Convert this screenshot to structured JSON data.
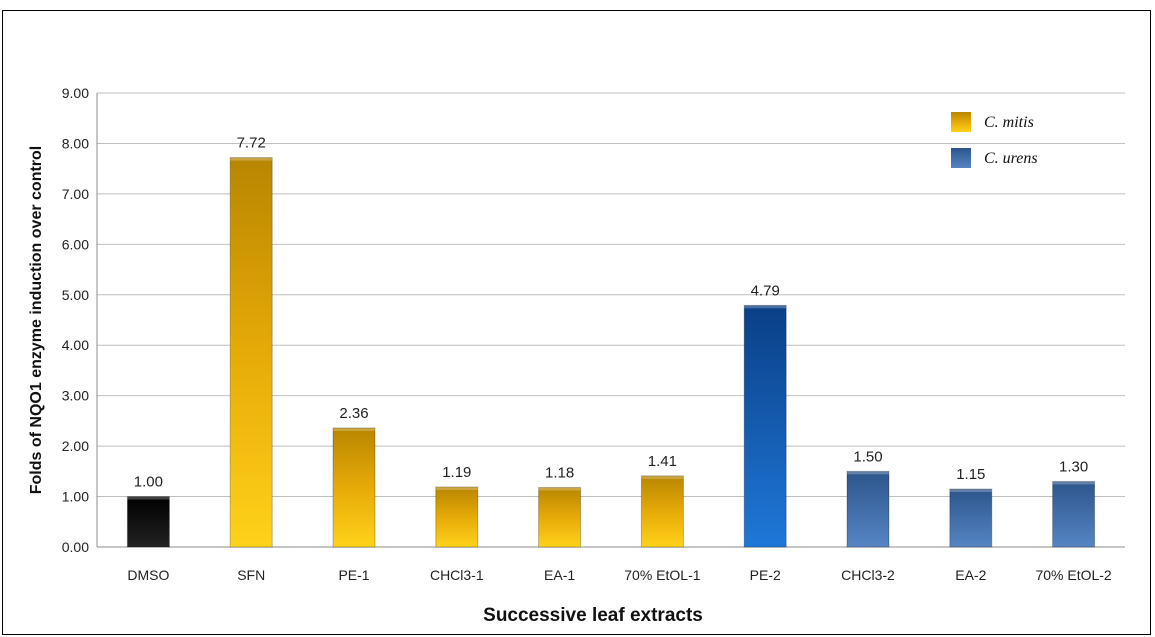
{
  "chart_data": {
    "type": "bar",
    "xlabel": "Successive leaf extracts",
    "ylabel": "Folds of NQO1 enzyme induction over control",
    "ylim": [
      0,
      9
    ],
    "yticks": [
      "0.00",
      "1.00",
      "2.00",
      "3.00",
      "4.00",
      "5.00",
      "6.00",
      "7.00",
      "8.00",
      "9.00"
    ],
    "grid": true,
    "legend_position": "top-right",
    "categories": [
      "DMSO",
      "SFN",
      "PE-1",
      "CHCl3-1",
      "EA-1",
      "70% EtOL-1",
      "PE-2",
      "CHCl3-2",
      "EA-2",
      "70% EtOL-2"
    ],
    "values": [
      1.0,
      7.72,
      2.36,
      1.19,
      1.18,
      1.41,
      4.79,
      1.5,
      1.15,
      1.3
    ],
    "value_labels": [
      "1.00",
      "7.72",
      "2.36",
      "1.19",
      "1.18",
      "1.41",
      "4.79",
      "1.50",
      "1.15",
      "1.30"
    ],
    "bar_groups": [
      "control",
      "mitis",
      "mitis",
      "mitis",
      "mitis",
      "mitis",
      "urens",
      "urens",
      "urens",
      "urens"
    ],
    "legend": [
      {
        "key": "mitis",
        "label": "C. mitis"
      },
      {
        "key": "urens",
        "label": "C. urens"
      }
    ],
    "colors": {
      "control": "#111111",
      "mitis": "#e8ac0c",
      "urens": "#3f6fad",
      "pe2": "#1560b8",
      "grid": "#bfbfbf"
    }
  }
}
